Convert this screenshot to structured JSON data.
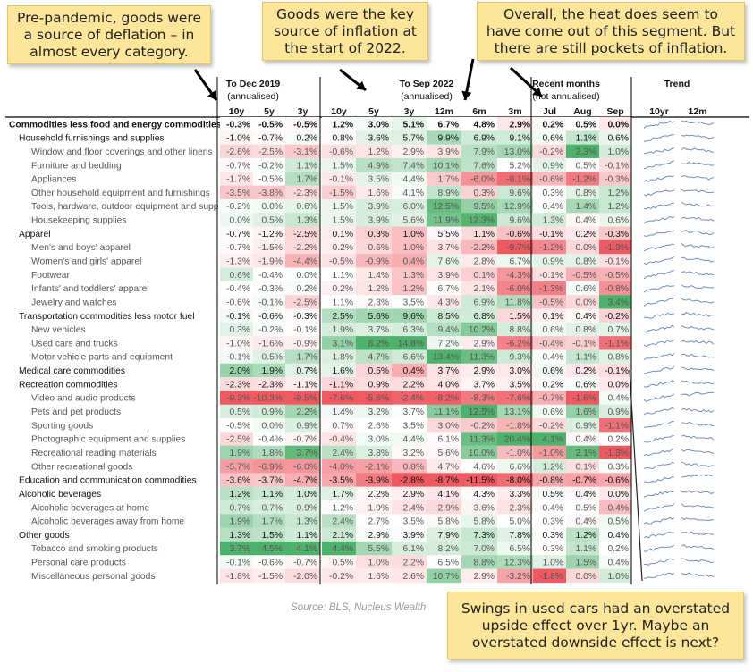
{
  "chart_data": {
    "type": "table",
    "groups": [
      {
        "title": "To Dec 2019",
        "subtitle": "(annualised)",
        "columns": [
          "10y",
          "5y",
          "3y"
        ]
      },
      {
        "title": "To Sep 2022",
        "subtitle": "(annualised)",
        "columns": [
          "10y",
          "5y",
          "3y",
          "12m",
          "6m",
          "3m"
        ]
      },
      {
        "title": "Recent months",
        "subtitle": "(not annualised)",
        "columns": [
          "Jul",
          "Aug",
          "Sep"
        ]
      },
      {
        "title": "Trend",
        "subtitle": "",
        "columns": [
          "10yr",
          "12m"
        ]
      }
    ],
    "rows": [
      {
        "label": "Commodities less food and energy commodities",
        "level": 0,
        "bold": true,
        "values": [
          "-0.3%",
          "-0.5%",
          "-0.5%",
          "1.2%",
          "3.0%",
          "5.1%",
          "6.7%",
          "4.8%",
          "2.9%",
          "0.2%",
          "0.5%",
          "0.0%"
        ]
      },
      {
        "label": "Household furnishings and supplies",
        "level": 1,
        "bold": false,
        "values": [
          "-1.0%",
          "-0.7%",
          "0.2%",
          "0.8%",
          "3.6%",
          "5.7%",
          "9.9%",
          "6.9%",
          "9.1%",
          "0.6%",
          "1.1%",
          "0.6%"
        ]
      },
      {
        "label": "Window and floor coverings and other linens",
        "level": 2,
        "bold": false,
        "values": [
          "-2.6%",
          "-2.5%",
          "-3.1%",
          "-0.6%",
          "1.2%",
          "2.9%",
          "3.9%",
          "7.9%",
          "13.0%",
          "-0.2%",
          "2.3%",
          "1.0%"
        ]
      },
      {
        "label": "Furniture and bedding",
        "level": 2,
        "bold": false,
        "values": [
          "-0.7%",
          "-0.2%",
          "1.1%",
          "1.5%",
          "4.9%",
          "7.4%",
          "10.1%",
          "7.6%",
          "5.2%",
          "0.9%",
          "0.5%",
          "-0.1%"
        ]
      },
      {
        "label": "Appliances",
        "level": 2,
        "bold": false,
        "values": [
          "-1.7%",
          "-0.5%",
          "1.7%",
          "-0.1%",
          "3.5%",
          "4.4%",
          "1.7%",
          "-6.0%",
          "-8.1%",
          "-0.6%",
          "-1.2%",
          "-0.3%"
        ]
      },
      {
        "label": "Other household equipment and furnishings",
        "level": 2,
        "bold": false,
        "values": [
          "-3.5%",
          "-3.8%",
          "-2.3%",
          "-1.5%",
          "1.6%",
          "4.1%",
          "8.9%",
          "0.3%",
          "9.6%",
          "0.3%",
          "0.8%",
          "1.2%"
        ]
      },
      {
        "label": "Tools, hardware, outdoor equipment and supplies",
        "level": 2,
        "bold": false,
        "values": [
          "-0.2%",
          "0.0%",
          "0.6%",
          "1.5%",
          "3.9%",
          "6.0%",
          "12.5%",
          "9.5%",
          "12.9%",
          "0.4%",
          "1.4%",
          "1.2%"
        ]
      },
      {
        "label": "Housekeeping supplies",
        "level": 2,
        "bold": false,
        "values": [
          "0.0%",
          "0.5%",
          "1.3%",
          "1.5%",
          "3.9%",
          "5.6%",
          "11.9%",
          "12.3%",
          "9.6%",
          "1.3%",
          "0.4%",
          "0.6%"
        ]
      },
      {
        "label": "Apparel",
        "level": 1,
        "bold": false,
        "values": [
          "-0.7%",
          "-1.2%",
          "-2.5%",
          "0.1%",
          "0.3%",
          "1.0%",
          "5.5%",
          "1.1%",
          "-0.6%",
          "-0.1%",
          "0.2%",
          "-0.3%"
        ]
      },
      {
        "label": "Men's and boys' apparel",
        "level": 2,
        "bold": false,
        "values": [
          "-0.7%",
          "-1.5%",
          "-2.2%",
          "0.2%",
          "0.6%",
          "1.0%",
          "3.7%",
          "-2.2%",
          "-9.7%",
          "-1.2%",
          "0.0%",
          "-1.3%"
        ]
      },
      {
        "label": "Women's and girls' apparel",
        "level": 2,
        "bold": false,
        "values": [
          "-1.3%",
          "-1.9%",
          "-4.4%",
          "-0.5%",
          "-0.9%",
          "0.4%",
          "7.6%",
          "2.8%",
          "6.7%",
          "0.9%",
          "0.8%",
          "-0.1%"
        ]
      },
      {
        "label": "Footwear",
        "level": 2,
        "bold": false,
        "values": [
          "0.6%",
          "-0.4%",
          "0.0%",
          "1.1%",
          "1.4%",
          "1.3%",
          "3.9%",
          "0.1%",
          "-4.3%",
          "-0.1%",
          "-0.5%",
          "-0.5%"
        ]
      },
      {
        "label": "Infants' and toddlers' apparel",
        "level": 2,
        "bold": false,
        "values": [
          "-0.4%",
          "-0.3%",
          "0.2%",
          "0.2%",
          "1.2%",
          "1.2%",
          "6.7%",
          "2.1%",
          "-6.0%",
          "-1.3%",
          "0.6%",
          "-0.8%"
        ]
      },
      {
        "label": "Jewelry and watches",
        "level": 2,
        "bold": false,
        "values": [
          "-0.6%",
          "-0.1%",
          "-2.5%",
          "1.1%",
          "2.3%",
          "3.5%",
          "4.3%",
          "6.9%",
          "11.8%",
          "-0.5%",
          "0.0%",
          "3.4%"
        ]
      },
      {
        "label": "Transportation commodities less motor fuel",
        "level": 1,
        "bold": false,
        "values": [
          "-0.1%",
          "-0.6%",
          "-0.3%",
          "2.5%",
          "5.6%",
          "9.6%",
          "8.5%",
          "6.8%",
          "1.5%",
          "0.1%",
          "0.4%",
          "-0.2%"
        ]
      },
      {
        "label": "New vehicles",
        "level": 2,
        "bold": false,
        "values": [
          "0.3%",
          "-0.2%",
          "-0.1%",
          "1.9%",
          "3.7%",
          "6.3%",
          "9.4%",
          "10.2%",
          "8.8%",
          "0.6%",
          "0.8%",
          "0.7%"
        ]
      },
      {
        "label": "Used cars and trucks",
        "level": 2,
        "bold": false,
        "values": [
          "-1.0%",
          "-1.6%",
          "-0.9%",
          "3.1%",
          "8.2%",
          "14.8%",
          "7.2%",
          "2.9%",
          "-6.2%",
          "-0.4%",
          "-0.1%",
          "-1.1%"
        ]
      },
      {
        "label": "Motor vehicle parts and equipment",
        "level": 2,
        "bold": false,
        "values": [
          "-0.1%",
          "0.5%",
          "1.7%",
          "1.8%",
          "4.7%",
          "6.6%",
          "13.4%",
          "11.3%",
          "9.3%",
          "0.4%",
          "1.1%",
          "0.8%"
        ]
      },
      {
        "label": "Medical care commodities",
        "level": 1,
        "bold": false,
        "values": [
          "2.0%",
          "1.9%",
          "0.7%",
          "1.6%",
          "0.5%",
          "0.4%",
          "3.7%",
          "2.9%",
          "3.0%",
          "0.6%",
          "0.2%",
          "-0.1%"
        ]
      },
      {
        "label": "Recreation commodities",
        "level": 1,
        "bold": false,
        "values": [
          "-2.3%",
          "-2.3%",
          "-1.1%",
          "-1.1%",
          "0.9%",
          "2.2%",
          "4.0%",
          "3.7%",
          "3.5%",
          "0.2%",
          "0.6%",
          "0.0%"
        ]
      },
      {
        "label": "Video and audio products",
        "level": 2,
        "bold": false,
        "values": [
          "-9.3%",
          "-10.3%",
          "-9.5%",
          "-7.6%",
          "-5.6%",
          "-2.4%",
          "-8.2%",
          "-8.3%",
          "-7.6%",
          "-0.7%",
          "-1.6%",
          "0.4%"
        ]
      },
      {
        "label": "Pets and pet products",
        "level": 2,
        "bold": false,
        "values": [
          "0.5%",
          "0.9%",
          "2.2%",
          "1.4%",
          "3.2%",
          "3.7%",
          "11.1%",
          "12.5%",
          "13.1%",
          "0.6%",
          "1.6%",
          "0.9%"
        ]
      },
      {
        "label": "Sporting goods",
        "level": 2,
        "bold": false,
        "values": [
          "-0.5%",
          "0.0%",
          "0.9%",
          "0.7%",
          "2.6%",
          "3.5%",
          "3.0%",
          "-0.2%",
          "-1.8%",
          "-0.2%",
          "0.9%",
          "-1.1%"
        ]
      },
      {
        "label": "Photographic equipment and supplies",
        "level": 2,
        "bold": false,
        "values": [
          "-2.5%",
          "-0.4%",
          "-0.7%",
          "-0.4%",
          "3.0%",
          "4.4%",
          "6.1%",
          "11.3%",
          "20.4%",
          "4.1%",
          "0.4%",
          "0.2%"
        ]
      },
      {
        "label": "Recreational reading materials",
        "level": 2,
        "bold": false,
        "values": [
          "1.9%",
          "1.8%",
          "3.7%",
          "2.4%",
          "3.8%",
          "3.2%",
          "5.6%",
          "10.0%",
          "-1.0%",
          "-1.0%",
          "2.1%",
          "-1.3%"
        ]
      },
      {
        "label": "Other recreational goods",
        "level": 2,
        "bold": false,
        "values": [
          "-5.7%",
          "-6.9%",
          "-6.0%",
          "-4.0%",
          "-2.1%",
          "0.8%",
          "4.7%",
          "4.6%",
          "6.6%",
          "1.2%",
          "0.1%",
          "0.3%"
        ]
      },
      {
        "label": "Education and communication commodities",
        "level": 1,
        "bold": false,
        "values": [
          "-3.6%",
          "-3.7%",
          "-4.7%",
          "-3.5%",
          "-3.9%",
          "-2.8%",
          "-8.7%",
          "-11.5%",
          "-8.0%",
          "-0.8%",
          "-0.7%",
          "-0.6%"
        ]
      },
      {
        "label": "Alcoholic beverages",
        "level": 1,
        "bold": false,
        "values": [
          "1.2%",
          "1.1%",
          "1.0%",
          "1.7%",
          "2.2%",
          "2.9%",
          "4.1%",
          "4.3%",
          "3.3%",
          "0.5%",
          "0.4%",
          "0.0%"
        ]
      },
      {
        "label": "Alcoholic beverages at home",
        "level": 2,
        "bold": false,
        "values": [
          "0.7%",
          "0.7%",
          "0.9%",
          "1.2%",
          "1.9%",
          "2.4%",
          "2.9%",
          "3.6%",
          "2.3%",
          "0.4%",
          "0.5%",
          "-0.4%"
        ]
      },
      {
        "label": "Alcoholic beverages away from home",
        "level": 2,
        "bold": false,
        "values": [
          "1.9%",
          "1.7%",
          "1.3%",
          "2.4%",
          "2.7%",
          "3.5%",
          "5.8%",
          "5.8%",
          "5.0%",
          "0.3%",
          "0.4%",
          "0.5%"
        ]
      },
      {
        "label": "Other goods",
        "level": 1,
        "bold": false,
        "values": [
          "1.3%",
          "1.5%",
          "1.1%",
          "2.1%",
          "2.9%",
          "3.9%",
          "7.9%",
          "7.3%",
          "7.8%",
          "0.3%",
          "1.2%",
          "0.4%"
        ]
      },
      {
        "label": "Tobacco and smoking products",
        "level": 2,
        "bold": false,
        "values": [
          "3.7%",
          "4.5%",
          "4.1%",
          "4.4%",
          "5.5%",
          "6.1%",
          "8.2%",
          "7.0%",
          "6.5%",
          "0.3%",
          "1.1%",
          "0.2%"
        ]
      },
      {
        "label": "Personal care products",
        "level": 2,
        "bold": false,
        "values": [
          "-0.1%",
          "-0.6%",
          "-0.7%",
          "0.5%",
          "1.0%",
          "2.2%",
          "6.5%",
          "8.8%",
          "12.3%",
          "1.0%",
          "1.5%",
          "0.4%"
        ]
      },
      {
        "label": "Miscellaneous personal goods",
        "level": 2,
        "bold": false,
        "values": [
          "-1.8%",
          "-1.5%",
          "-2.0%",
          "-0.2%",
          "1.6%",
          "2.6%",
          "10.7%",
          "2.9%",
          "-3.2%",
          "-1.8%",
          "0.0%",
          "1.0%"
        ]
      }
    ],
    "source": "Source: BLS, Nucleus Wealth",
    "colors": {
      "negative": "#ee5a62",
      "positive": "#4fb26c",
      "neutral": "#ffffff",
      "sparkline": "#6e8fc0",
      "header_line": "#000000"
    }
  },
  "annotations": [
    {
      "id": "note-predemic",
      "text": "Pre-pandemic, goods were a source of deflation – in almost every category."
    },
    {
      "id": "note-key-source",
      "text": "Goods were the key source of inflation at the start of 2022."
    },
    {
      "id": "note-heat",
      "text": "Overall, the heat does seem to have come out of this segment. But there are still pockets of inflation."
    },
    {
      "id": "note-used-cars",
      "text": "Swings in used cars had an overstated upside effect over 1yr. Maybe an overstated downside effect is next?"
    }
  ]
}
